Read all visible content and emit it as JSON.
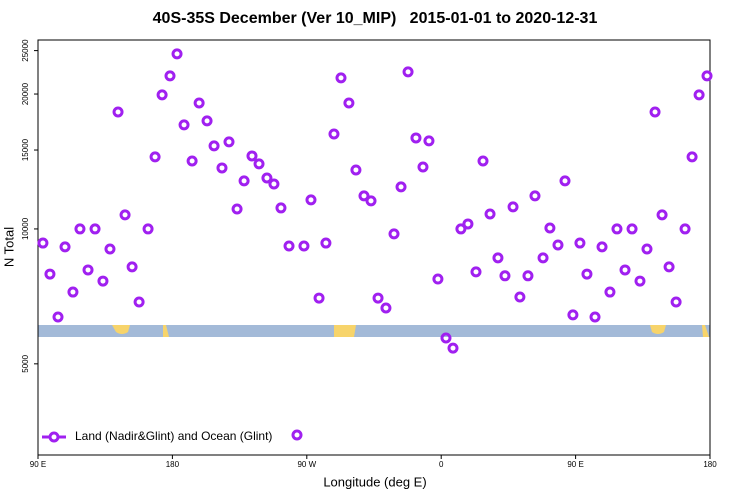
{
  "chart_data": {
    "type": "scatter",
    "title": "40S-35S December (Ver 10_MIP)   2015-01-01 to 2020-12-31",
    "x_label": "Longitude (deg E)",
    "y_label": "N Total",
    "log_y": true,
    "xlim": [
      90,
      540
    ],
    "ylim": [
      3130,
      26400
    ],
    "xticks": [
      {
        "value": 90,
        "label": "90 E"
      },
      180,
      {
        "value": 270,
        "label": "90 W"
      },
      {
        "value": 360,
        "label": "0"
      },
      {
        "value": 450,
        "label": "90 E"
      },
      {
        "value": 540,
        "label": "180"
      }
    ],
    "yticks": [
      5000,
      10000,
      15000,
      20000,
      25000
    ],
    "legend": "lower left",
    "x": [
      93.3,
      98.0,
      103.4,
      108.1,
      113.4,
      118.1,
      123.5,
      128.2,
      133.5,
      138.2,
      143.6,
      148.3,
      153.0,
      157.7,
      163.7,
      168.4,
      173.1,
      178.4,
      183.1,
      187.8,
      193.2,
      197.9,
      203.2,
      207.9,
      213.2,
      217.9,
      223.3,
      228.0,
      233.3,
      238.0,
      243.3,
      248.0,
      252.7,
      258.1,
      268.1,
      272.8,
      278.2,
      282.8,
      288.2,
      292.9,
      298.2,
      302.9,
      308.3,
      313.0,
      317.7,
      323.0,
      328.4,
      333.1,
      337.8,
      343.1,
      347.8,
      351.8,
      357.8,
      363.2,
      367.9,
      373.2,
      377.9,
      383.3,
      388.0,
      392.7,
      398.0,
      402.7,
      408.1,
      412.7,
      418.1,
      422.8,
      428.2,
      432.8,
      438.2,
      442.9,
      448.2,
      452.9,
      457.6,
      463.0,
      467.7,
      473.0,
      477.7,
      483.1,
      487.8,
      493.1,
      497.8,
      503.2,
      507.9,
      512.6,
      517.3,
      523.3,
      528.0,
      532.7,
      538.0
    ],
    "series": [
      {
        "name": "Land (Nadir&Glint) and Ocean (Glint)",
        "color": "#a020f0",
        "values": [
          9300,
          7930,
          6360,
          9120,
          7230,
          10000,
          8100,
          10000,
          7650,
          9020,
          18240,
          10750,
          8230,
          6870,
          10000,
          14480,
          19910,
          21960,
          24580,
          17070,
          14180,
          19100,
          17420,
          15320,
          13680,
          15640,
          11080,
          12800,
          14550,
          13970,
          12990,
          12600,
          11140,
          9160,
          9160,
          11610,
          7010,
          9300,
          16290,
          21730,
          19100,
          13540,
          11850,
          11550,
          7010,
          6660,
          9750,
          12410,
          22410,
          15960,
          13750,
          15720,
          7730,
          5710,
          5420,
          10000,
          10260,
          8020,
          14180,
          10800,
          8620,
          7860,
          11200,
          7050,
          7860,
          11850,
          8620,
          10050,
          9210,
          12800,
          6430,
          9300,
          7930,
          6360,
          9120,
          7230,
          10000,
          8100,
          10000,
          7650,
          9020,
          18240,
          10750,
          8230,
          6870,
          10000,
          14480,
          19910,
          21960
        ]
      }
    ]
  }
}
